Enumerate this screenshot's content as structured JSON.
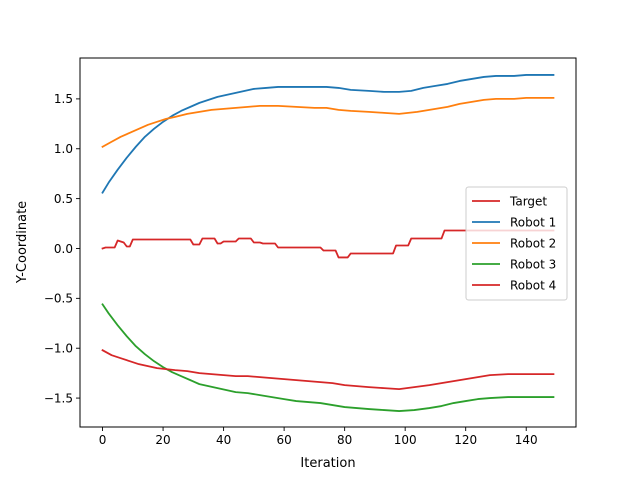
{
  "chart_data": {
    "type": "line",
    "title": "",
    "xlabel": "Iteration",
    "ylabel": "Y-Coordinate",
    "xlim": [
      -7.45,
      156.45
    ],
    "ylim": [
      -1.79,
      1.91
    ],
    "xticks": [
      0,
      20,
      40,
      60,
      80,
      100,
      120,
      140
    ],
    "xtick_labels": [
      "0",
      "20",
      "40",
      "60",
      "80",
      "100",
      "120",
      "140"
    ],
    "yticks": [
      -1.5,
      -1.0,
      -0.5,
      0.0,
      0.5,
      1.0,
      1.5
    ],
    "ytick_labels": [
      "−1.5",
      "−1.0",
      "−0.5",
      "0.0",
      "0.5",
      "1.0",
      "1.5"
    ],
    "grid": false,
    "legend_position": "center-right",
    "series": [
      {
        "name": "Target",
        "color": "#d62728",
        "step": true,
        "points": [
          [
            0,
            0.0
          ],
          [
            1,
            0.01
          ],
          [
            4,
            0.01
          ],
          [
            5,
            0.08
          ],
          [
            7,
            0.06
          ],
          [
            8,
            0.02
          ],
          [
            9,
            0.02
          ],
          [
            10,
            0.09
          ],
          [
            29,
            0.09
          ],
          [
            30,
            0.04
          ],
          [
            32,
            0.04
          ],
          [
            33,
            0.1
          ],
          [
            37,
            0.1
          ],
          [
            38,
            0.05
          ],
          [
            39,
            0.05
          ],
          [
            40,
            0.07
          ],
          [
            44,
            0.07
          ],
          [
            45,
            0.1
          ],
          [
            49,
            0.1
          ],
          [
            50,
            0.06
          ],
          [
            52,
            0.06
          ],
          [
            53,
            0.05
          ],
          [
            57,
            0.05
          ],
          [
            58,
            0.01
          ],
          [
            72,
            0.01
          ],
          [
            73,
            -0.02
          ],
          [
            77,
            -0.02
          ],
          [
            78,
            -0.09
          ],
          [
            81,
            -0.09
          ],
          [
            82,
            -0.05
          ],
          [
            96,
            -0.05
          ],
          [
            97,
            0.03
          ],
          [
            101,
            0.03
          ],
          [
            102,
            0.1
          ],
          [
            112,
            0.1
          ],
          [
            113,
            0.18
          ],
          [
            149,
            0.18
          ]
        ]
      },
      {
        "name": "Robot 1",
        "color": "#1f77b4",
        "step": false,
        "points": [
          [
            0,
            0.56
          ],
          [
            2,
            0.66
          ],
          [
            5,
            0.79
          ],
          [
            8,
            0.91
          ],
          [
            11,
            1.02
          ],
          [
            14,
            1.12
          ],
          [
            17,
            1.2
          ],
          [
            20,
            1.27
          ],
          [
            23,
            1.33
          ],
          [
            26,
            1.38
          ],
          [
            29,
            1.42
          ],
          [
            32,
            1.46
          ],
          [
            35,
            1.49
          ],
          [
            38,
            1.52
          ],
          [
            41,
            1.54
          ],
          [
            44,
            1.56
          ],
          [
            47,
            1.58
          ],
          [
            50,
            1.6
          ],
          [
            54,
            1.61
          ],
          [
            58,
            1.62
          ],
          [
            64,
            1.62
          ],
          [
            70,
            1.62
          ],
          [
            74,
            1.62
          ],
          [
            78,
            1.61
          ],
          [
            82,
            1.59
          ],
          [
            88,
            1.58
          ],
          [
            93,
            1.57
          ],
          [
            98,
            1.57
          ],
          [
            102,
            1.58
          ],
          [
            106,
            1.61
          ],
          [
            110,
            1.63
          ],
          [
            114,
            1.65
          ],
          [
            118,
            1.68
          ],
          [
            122,
            1.7
          ],
          [
            126,
            1.72
          ],
          [
            130,
            1.73
          ],
          [
            136,
            1.73
          ],
          [
            140,
            1.74
          ],
          [
            149,
            1.74
          ]
        ]
      },
      {
        "name": "Robot 2",
        "color": "#ff7f0e",
        "step": false,
        "points": [
          [
            0,
            1.02
          ],
          [
            3,
            1.07
          ],
          [
            6,
            1.12
          ],
          [
            9,
            1.16
          ],
          [
            12,
            1.2
          ],
          [
            15,
            1.24
          ],
          [
            18,
            1.27
          ],
          [
            21,
            1.3
          ],
          [
            24,
            1.32
          ],
          [
            28,
            1.35
          ],
          [
            32,
            1.37
          ],
          [
            36,
            1.39
          ],
          [
            40,
            1.4
          ],
          [
            44,
            1.41
          ],
          [
            48,
            1.42
          ],
          [
            52,
            1.43
          ],
          [
            58,
            1.43
          ],
          [
            64,
            1.42
          ],
          [
            70,
            1.41
          ],
          [
            74,
            1.41
          ],
          [
            78,
            1.39
          ],
          [
            82,
            1.38
          ],
          [
            88,
            1.37
          ],
          [
            93,
            1.36
          ],
          [
            98,
            1.35
          ],
          [
            104,
            1.37
          ],
          [
            110,
            1.4
          ],
          [
            114,
            1.42
          ],
          [
            118,
            1.45
          ],
          [
            122,
            1.47
          ],
          [
            126,
            1.49
          ],
          [
            130,
            1.5
          ],
          [
            136,
            1.5
          ],
          [
            140,
            1.51
          ],
          [
            149,
            1.51
          ]
        ]
      },
      {
        "name": "Robot 3",
        "color": "#2ca02c",
        "step": false,
        "points": [
          [
            0,
            -0.56
          ],
          [
            2,
            -0.65
          ],
          [
            5,
            -0.77
          ],
          [
            8,
            -0.88
          ],
          [
            11,
            -0.98
          ],
          [
            14,
            -1.06
          ],
          [
            17,
            -1.13
          ],
          [
            20,
            -1.19
          ],
          [
            23,
            -1.24
          ],
          [
            26,
            -1.28
          ],
          [
            29,
            -1.32
          ],
          [
            32,
            -1.36
          ],
          [
            35,
            -1.38
          ],
          [
            38,
            -1.4
          ],
          [
            41,
            -1.42
          ],
          [
            44,
            -1.44
          ],
          [
            48,
            -1.45
          ],
          [
            52,
            -1.47
          ],
          [
            56,
            -1.49
          ],
          [
            60,
            -1.51
          ],
          [
            64,
            -1.53
          ],
          [
            68,
            -1.54
          ],
          [
            72,
            -1.55
          ],
          [
            76,
            -1.57
          ],
          [
            80,
            -1.59
          ],
          [
            84,
            -1.6
          ],
          [
            88,
            -1.61
          ],
          [
            93,
            -1.62
          ],
          [
            98,
            -1.63
          ],
          [
            103,
            -1.62
          ],
          [
            108,
            -1.6
          ],
          [
            112,
            -1.58
          ],
          [
            116,
            -1.55
          ],
          [
            120,
            -1.53
          ],
          [
            124,
            -1.51
          ],
          [
            128,
            -1.5
          ],
          [
            134,
            -1.49
          ],
          [
            140,
            -1.49
          ],
          [
            149,
            -1.49
          ]
        ]
      },
      {
        "name": "Robot 4",
        "color": "#d62728",
        "step": false,
        "points": [
          [
            0,
            -1.02
          ],
          [
            3,
            -1.07
          ],
          [
            6,
            -1.1
          ],
          [
            9,
            -1.13
          ],
          [
            12,
            -1.16
          ],
          [
            15,
            -1.18
          ],
          [
            18,
            -1.2
          ],
          [
            21,
            -1.21
          ],
          [
            24,
            -1.22
          ],
          [
            28,
            -1.23
          ],
          [
            32,
            -1.25
          ],
          [
            36,
            -1.26
          ],
          [
            40,
            -1.27
          ],
          [
            44,
            -1.28
          ],
          [
            48,
            -1.28
          ],
          [
            52,
            -1.29
          ],
          [
            56,
            -1.3
          ],
          [
            60,
            -1.31
          ],
          [
            64,
            -1.32
          ],
          [
            68,
            -1.33
          ],
          [
            72,
            -1.34
          ],
          [
            76,
            -1.35
          ],
          [
            80,
            -1.37
          ],
          [
            84,
            -1.38
          ],
          [
            88,
            -1.39
          ],
          [
            93,
            -1.4
          ],
          [
            98,
            -1.41
          ],
          [
            103,
            -1.39
          ],
          [
            108,
            -1.37
          ],
          [
            112,
            -1.35
          ],
          [
            116,
            -1.33
          ],
          [
            120,
            -1.31
          ],
          [
            124,
            -1.29
          ],
          [
            128,
            -1.27
          ],
          [
            134,
            -1.26
          ],
          [
            140,
            -1.26
          ],
          [
            149,
            -1.26
          ]
        ]
      }
    ]
  }
}
